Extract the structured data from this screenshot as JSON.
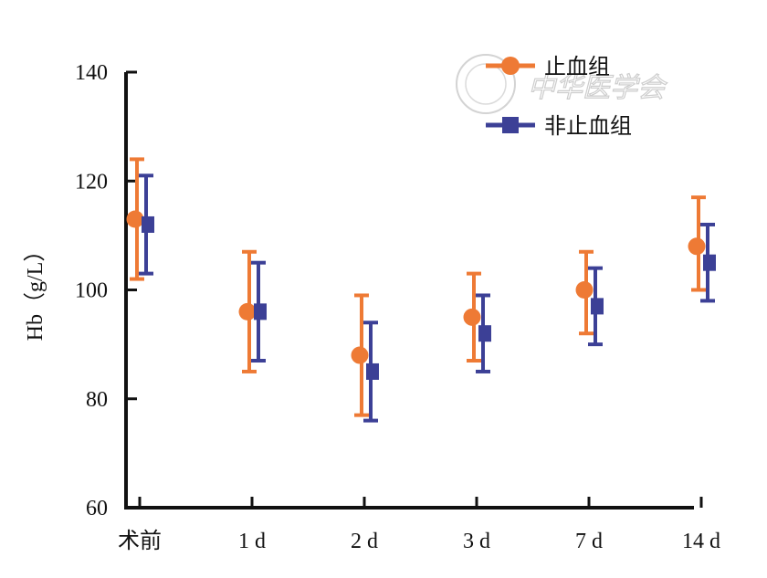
{
  "chart_data": {
    "type": "scatter",
    "title": "",
    "ylabel": "Hb（g/L）",
    "xlabel": "",
    "categories": [
      "术前",
      "1 d",
      "2 d",
      "3 d",
      "7 d",
      "14 d"
    ],
    "ylim": [
      60,
      140
    ],
    "yticks": [
      60,
      80,
      100,
      120,
      140
    ],
    "grid": false,
    "legend_position": "top-right",
    "series": [
      {
        "name": "止血组",
        "marker": "circle",
        "color": "#ee7a35",
        "values": [
          113,
          96,
          88,
          95,
          100,
          108
        ],
        "lower": [
          102,
          85,
          77,
          87,
          92,
          100
        ],
        "upper": [
          124,
          107,
          99,
          103,
          107,
          117
        ]
      },
      {
        "name": "非止血组",
        "marker": "square",
        "color": "#3c4096",
        "values": [
          112,
          96,
          85,
          92,
          97,
          105
        ],
        "lower": [
          103,
          87,
          76,
          85,
          90,
          98
        ],
        "upper": [
          121,
          105,
          94,
          99,
          104,
          112
        ]
      }
    ]
  },
  "watermark": {
    "text": "中华医学会"
  }
}
